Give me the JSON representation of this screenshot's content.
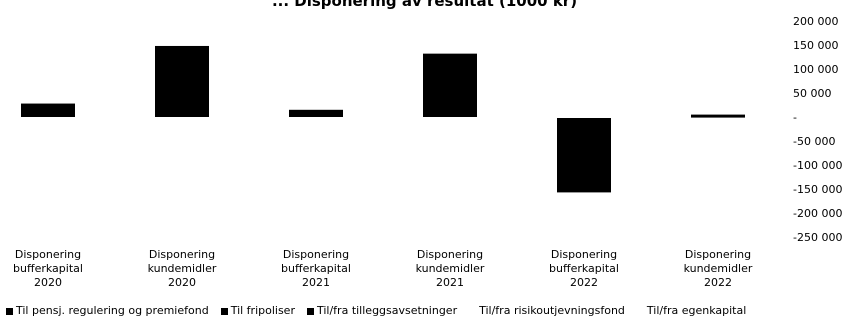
{
  "chart_data": {
    "type": "bar",
    "title": "... Disponering av resultat (1000 kr)",
    "categories": [
      [
        "Disponering",
        "bufferkapital",
        "2020"
      ],
      [
        "Disponering",
        "kundemidler",
        "2020"
      ],
      [
        "Disponering",
        "bufferkapital",
        "2021"
      ],
      [
        "Disponering",
        "kundemidler",
        "2021"
      ],
      [
        "Disponering",
        "bufferkapital",
        "2022"
      ],
      [
        "Disponering",
        "kundemidler",
        "2022"
      ]
    ],
    "series": [
      {
        "name": "Til pensj. regulering og premiefond",
        "color": "#000000",
        "values": [
          0,
          148000,
          0,
          132000,
          0,
          0
        ]
      },
      {
        "name": "Til fripoliser",
        "color": "#000000",
        "values": [
          0,
          0,
          0,
          0,
          0,
          0
        ]
      },
      {
        "name": "Til/fra tilleggsavsetninger",
        "color": "#000000",
        "values": [
          28000,
          0,
          15000,
          0,
          -155000,
          0
        ]
      },
      {
        "name": "Til/fra risikoutjevningsfond",
        "color": "#ffffff",
        "values": [
          0,
          0,
          0,
          0,
          0,
          0
        ]
      },
      {
        "name": "Til/fra egenkapital",
        "color": "#ffffff",
        "values": [
          0,
          0,
          0,
          0,
          0,
          5000
        ]
      }
    ],
    "y_ticks": [
      "200 000",
      "150 000",
      "100 000",
      "50 000",
      "-",
      "-50 000",
      "-100 000",
      "-150 000",
      "-200 000",
      "-250 000"
    ],
    "ylim": [
      -250000,
      200000
    ],
    "y_axis_position": "right",
    "legend_position": "bottom",
    "grid": false
  }
}
